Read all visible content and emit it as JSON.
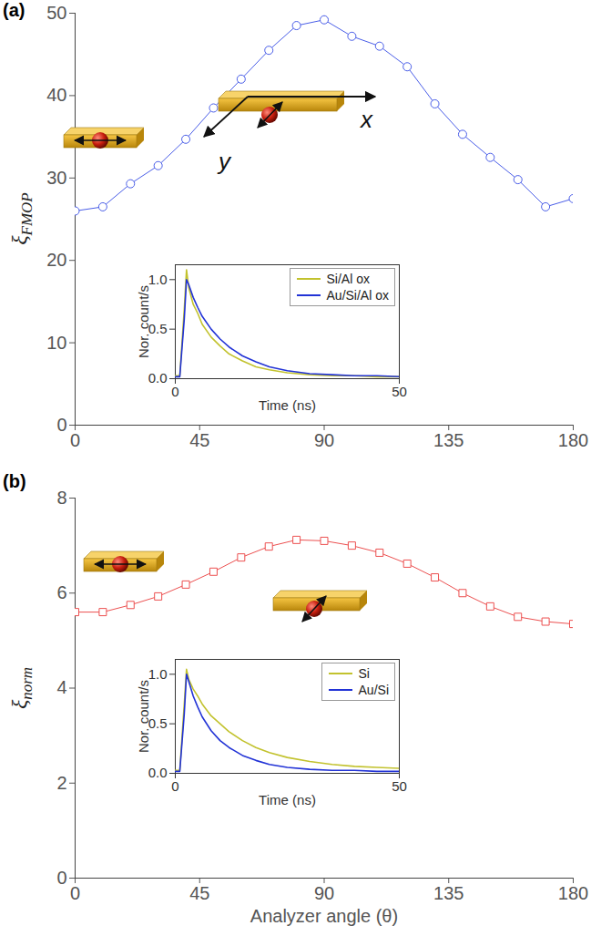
{
  "chart_data": [
    {
      "panel": "(a)",
      "type": "line",
      "y_label": "ξ",
      "y_label_subscript": "FMOP",
      "xlim": [
        0,
        180
      ],
      "xticks": [
        0,
        45,
        90,
        135,
        180
      ],
      "ylim": [
        0,
        50
      ],
      "yticks": [
        0,
        10,
        20,
        30,
        40,
        50
      ],
      "x": [
        0,
        10,
        20,
        30,
        40,
        50,
        60,
        70,
        80,
        90,
        100,
        110,
        120,
        130,
        140,
        150,
        160,
        170,
        180
      ],
      "values": [
        26,
        26.5,
        29.3,
        31.5,
        34.7,
        38.5,
        42,
        45.5,
        48.5,
        49.2,
        47.2,
        46,
        43.5,
        39,
        35.3,
        32.5,
        29.8,
        26.5,
        27.5
      ],
      "color": "#4a5ee8",
      "marker": "circle",
      "annotations": [
        "x",
        "y"
      ],
      "inset": {
        "type": "line",
        "x_label": "Time (ns)",
        "y_label": "Nor. count/s",
        "xlim": [
          0,
          50
        ],
        "xticks": [
          0,
          50
        ],
        "ylim": [
          0,
          1.15
        ],
        "yticks": [
          0,
          0.5,
          1
        ],
        "legend": "upper right",
        "series": [
          {
            "name": "Si/Al ox",
            "color": "#c2c22e",
            "x": [
              0,
              1,
              2,
              2.5,
              3,
              4,
              5,
              6,
              8,
              10,
              12,
              15,
              18,
              21,
              25,
              30,
              35,
              40,
              45,
              50
            ],
            "values": [
              0.03,
              0.03,
              0.7,
              1.1,
              0.92,
              0.75,
              0.66,
              0.55,
              0.42,
              0.33,
              0.25,
              0.18,
              0.12,
              0.09,
              0.06,
              0.04,
              0.03,
              0.03,
              0.02,
              0.02
            ]
          },
          {
            "name": "Au/Si/Al ox",
            "color": "#2233d6",
            "x": [
              0,
              1,
              2,
              2.5,
              3,
              4,
              5,
              6,
              8,
              10,
              12,
              15,
              18,
              21,
              25,
              30,
              35,
              40,
              45,
              50
            ],
            "values": [
              0.02,
              0.02,
              0.6,
              1.0,
              0.95,
              0.82,
              0.72,
              0.63,
              0.5,
              0.4,
              0.32,
              0.23,
              0.17,
              0.12,
              0.08,
              0.05,
              0.04,
              0.03,
              0.03,
              0.02
            ]
          }
        ]
      }
    },
    {
      "panel": "(b)",
      "type": "line",
      "y_label": "ξ",
      "y_label_subscript": "norm",
      "x_label": "Analyzer angle (θ)",
      "xlim": [
        0,
        180
      ],
      "xticks": [
        0,
        45,
        90,
        135,
        180
      ],
      "ylim": [
        0,
        8
      ],
      "yticks": [
        0,
        2,
        4,
        6,
        8
      ],
      "x": [
        0,
        10,
        20,
        30,
        40,
        50,
        60,
        70,
        80,
        90,
        100,
        110,
        120,
        130,
        140,
        150,
        160,
        170,
        180
      ],
      "values": [
        5.6,
        5.6,
        5.75,
        5.93,
        6.18,
        6.45,
        6.75,
        6.98,
        7.12,
        7.1,
        7.0,
        6.85,
        6.62,
        6.33,
        6.0,
        5.72,
        5.5,
        5.4,
        5.35
      ],
      "color": "#ec5050",
      "marker": "square",
      "inset": {
        "type": "line",
        "x_label": "Time (ns)",
        "y_label": "Nor. count/s",
        "xlim": [
          0,
          50
        ],
        "xticks": [
          0,
          50
        ],
        "ylim": [
          0,
          1.15
        ],
        "yticks": [
          0,
          0.5,
          1
        ],
        "legend": "upper right",
        "series": [
          {
            "name": "Si",
            "color": "#c2c22e",
            "x": [
              0,
              1,
              2,
              2.5,
              3,
              4,
              5,
              6,
              8,
              10,
              12,
              15,
              18,
              21,
              25,
              30,
              35,
              40,
              45,
              50
            ],
            "values": [
              0.03,
              0.03,
              0.7,
              1.05,
              0.95,
              0.85,
              0.78,
              0.7,
              0.58,
              0.5,
              0.42,
              0.33,
              0.26,
              0.21,
              0.16,
              0.12,
              0.09,
              0.07,
              0.06,
              0.05
            ]
          },
          {
            "name": "Au/Si",
            "color": "#2233d6",
            "x": [
              0,
              1,
              2,
              2.5,
              3,
              4,
              5,
              6,
              8,
              10,
              12,
              15,
              18,
              21,
              25,
              30,
              35,
              40,
              45,
              50
            ],
            "values": [
              0.02,
              0.02,
              0.6,
              1.0,
              0.93,
              0.78,
              0.67,
              0.57,
              0.43,
              0.33,
              0.26,
              0.18,
              0.13,
              0.09,
              0.06,
              0.04,
              0.03,
              0.03,
              0.02,
              0.02
            ]
          }
        ]
      }
    }
  ]
}
